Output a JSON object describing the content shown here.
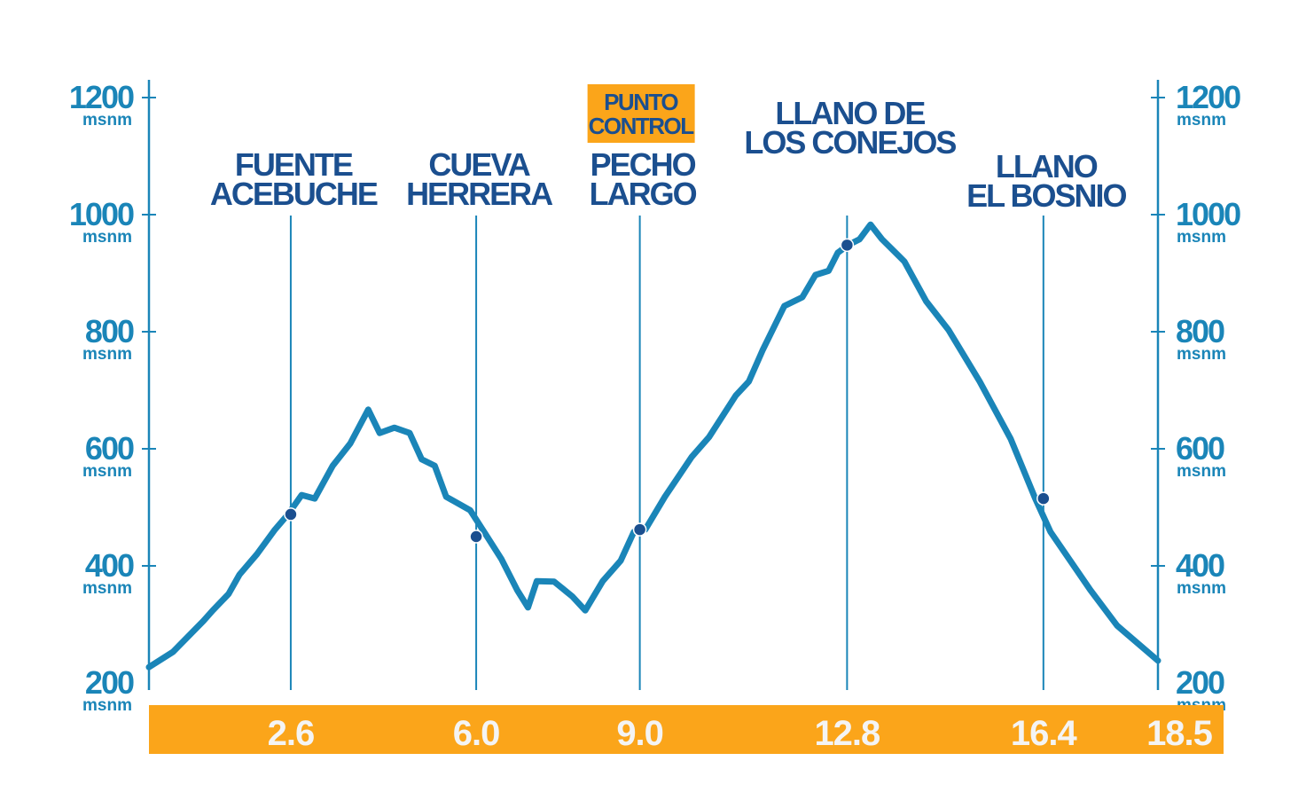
{
  "chart_data": {
    "type": "line",
    "title": "",
    "xlabel": "",
    "ylabel": "",
    "y_unit": "msnm",
    "xlim": [
      0,
      18.5
    ],
    "ylim": [
      200,
      1200
    ],
    "y_ticks": [
      200,
      400,
      600,
      800,
      1000,
      1200
    ],
    "y_tick_labels": [
      "200",
      "400",
      "600",
      "800",
      "1000",
      "1200"
    ],
    "x_tick_labels": [
      "2.6",
      "6.0",
      "9.0",
      "12.8",
      "16.4",
      "18.5"
    ],
    "x_ticks": [
      2.6,
      6.0,
      9.0,
      12.8,
      16.4,
      18.5
    ],
    "grid": false,
    "colors": {
      "line": "#1a85b8",
      "axis": "#1a85b8",
      "tick_label": "#1a85b8",
      "waypoint_label": "#1b4f8f",
      "marker": "#1b4f8f",
      "bar": "#fba51a",
      "bar_text": "#f4f4f4",
      "badge": "#fba51a",
      "badge_text": "#1b4f8f"
    },
    "series": [
      {
        "x": [
          0,
          0.44,
          1.0,
          1.17,
          1.46,
          1.66,
          1.98,
          2.31,
          2.55,
          2.8,
          3.04,
          3.37,
          3.69,
          4.02,
          4.23,
          4.5,
          4.78,
          5.0,
          5.24,
          5.45,
          5.89,
          6.2,
          6.46,
          6.75,
          6.95,
          7.11,
          7.43,
          7.76,
          8.0,
          8.32,
          8.65,
          8.89,
          9.1,
          9.46,
          9.95,
          10.27,
          10.76,
          11.0,
          11.25,
          11.65,
          11.98,
          12.22,
          12.46,
          12.63,
          12.82,
          13.03,
          13.23,
          13.44,
          13.85,
          14.25,
          14.66,
          15.23,
          15.8,
          16.25,
          16.53,
          17.26,
          17.75,
          18.5
        ],
        "y": [
          227,
          253,
          306,
          324,
          352,
          385,
          420,
          462,
          488,
          521,
          515,
          571,
          609,
          667,
          627,
          636,
          627,
          582,
          571,
          518,
          495,
          450,
          412,
          359,
          329,
          374,
          373,
          348,
          324,
          374,
          409,
          458,
          462,
          518,
          586,
          620,
          691,
          715,
          768,
          844,
          859,
          897,
          904,
          935,
          948,
          958,
          983,
          958,
          920,
          852,
          803,
          715,
          617,
          515,
          458,
          359,
          298,
          238
        ]
      }
    ],
    "waypoints": [
      {
        "km": 2.6,
        "elevation": 488,
        "label_lines": [
          "FUENTE",
          "ACEBUCHE"
        ]
      },
      {
        "km": 6.0,
        "elevation": 450,
        "label_lines": [
          "CUEVA",
          "HERRERA"
        ]
      },
      {
        "km": 9.0,
        "elevation": 462,
        "label_lines": [
          "PECHO",
          "LARGO"
        ],
        "badge_lines": [
          "PUNTO",
          "CONTROL"
        ]
      },
      {
        "km": 12.8,
        "elevation": 948,
        "label_lines": [
          "LLANO DE",
          "LOS CONEJOS"
        ]
      },
      {
        "km": 16.4,
        "elevation": 515,
        "label_lines": [
          "LLANO",
          "EL BOSNIO"
        ]
      }
    ]
  }
}
